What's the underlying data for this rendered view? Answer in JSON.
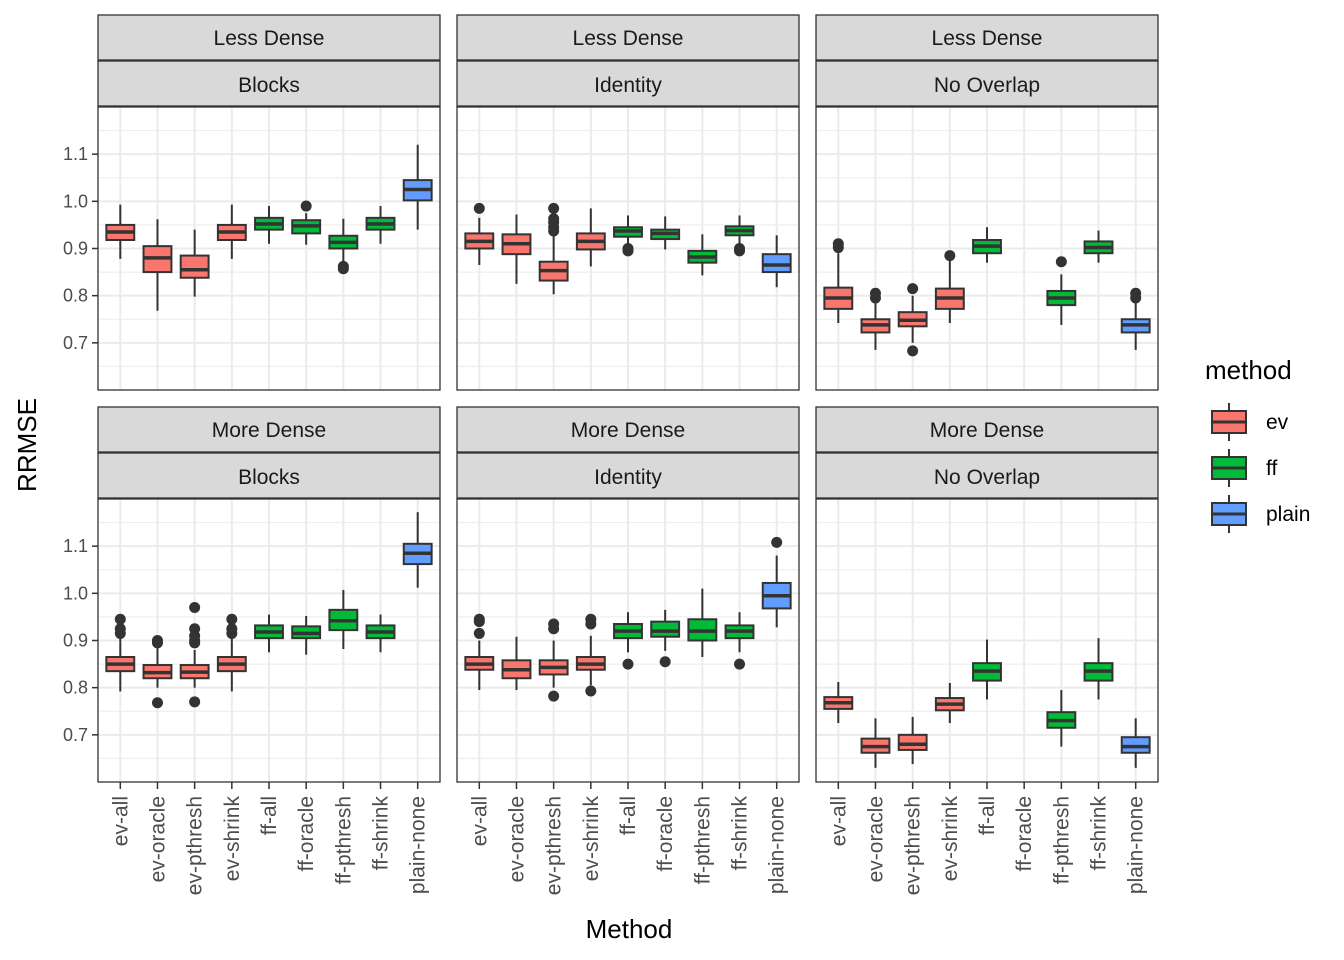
{
  "chart_data": {
    "type": "boxplot",
    "xlabel": "Method",
    "ylabel": "RRMSE",
    "ylim": [
      0.6,
      1.2
    ],
    "yticks": [
      0.7,
      0.8,
      0.9,
      1.0,
      1.1
    ],
    "ytick_labels": [
      "0.7",
      "0.8",
      "0.9",
      "1.0",
      "1.1"
    ],
    "categories": [
      "ev-all",
      "ev-oracle",
      "ev-pthresh",
      "ev-shrink",
      "ff-all",
      "ff-oracle",
      "ff-pthresh",
      "ff-shrink",
      "plain-none"
    ],
    "category_groups": [
      "ev",
      "ev",
      "ev",
      "ev",
      "ff",
      "ff",
      "ff",
      "ff",
      "plain"
    ],
    "grid": true,
    "legend": {
      "title": "method",
      "position": "right",
      "items": [
        {
          "label": "ev",
          "color": "#F8766D"
        },
        {
          "label": "ff",
          "color": "#00BA38"
        },
        {
          "label": "plain",
          "color": "#619CFF"
        }
      ]
    },
    "panels": [
      {
        "row_label": "Less Dense",
        "col_label": "Blocks",
        "boxes": [
          {
            "min": 0.878,
            "q1": 0.918,
            "median": 0.935,
            "q3": 0.95,
            "max": 0.993,
            "outliers": []
          },
          {
            "min": 0.768,
            "q1": 0.85,
            "median": 0.88,
            "q3": 0.905,
            "max": 0.962,
            "outliers": []
          },
          {
            "min": 0.798,
            "q1": 0.838,
            "median": 0.855,
            "q3": 0.885,
            "max": 0.94,
            "outliers": []
          },
          {
            "min": 0.878,
            "q1": 0.918,
            "median": 0.935,
            "q3": 0.95,
            "max": 0.993,
            "outliers": []
          },
          {
            "min": 0.91,
            "q1": 0.94,
            "median": 0.952,
            "q3": 0.965,
            "max": 0.99,
            "outliers": []
          },
          {
            "min": 0.908,
            "q1": 0.932,
            "median": 0.948,
            "q3": 0.96,
            "max": 0.975,
            "outliers": [
              0.99
            ]
          },
          {
            "min": 0.87,
            "q1": 0.9,
            "median": 0.913,
            "q3": 0.927,
            "max": 0.963,
            "outliers": [
              0.862,
              0.857
            ]
          },
          {
            "min": 0.91,
            "q1": 0.94,
            "median": 0.952,
            "q3": 0.965,
            "max": 0.99,
            "outliers": []
          },
          {
            "min": 0.94,
            "q1": 1.002,
            "median": 1.025,
            "q3": 1.045,
            "max": 1.12,
            "outliers": []
          }
        ]
      },
      {
        "row_label": "Less Dense",
        "col_label": "Identity",
        "boxes": [
          {
            "min": 0.865,
            "q1": 0.9,
            "median": 0.915,
            "q3": 0.932,
            "max": 0.965,
            "outliers": [
              0.985
            ]
          },
          {
            "min": 0.825,
            "q1": 0.888,
            "median": 0.91,
            "q3": 0.93,
            "max": 0.972,
            "outliers": []
          },
          {
            "min": 0.803,
            "q1": 0.832,
            "median": 0.853,
            "q3": 0.872,
            "max": 0.93,
            "outliers": [
              0.937,
              0.945,
              0.955,
              0.963,
              0.985
            ]
          },
          {
            "min": 0.862,
            "q1": 0.898,
            "median": 0.915,
            "q3": 0.932,
            "max": 0.985,
            "outliers": []
          },
          {
            "min": 0.905,
            "q1": 0.925,
            "median": 0.937,
            "q3": 0.945,
            "max": 0.97,
            "outliers": [
              0.895,
              0.9
            ]
          },
          {
            "min": 0.898,
            "q1": 0.92,
            "median": 0.932,
            "q3": 0.94,
            "max": 0.968,
            "outliers": []
          },
          {
            "min": 0.843,
            "q1": 0.87,
            "median": 0.882,
            "q3": 0.895,
            "max": 0.93,
            "outliers": []
          },
          {
            "min": 0.905,
            "q1": 0.928,
            "median": 0.938,
            "q3": 0.947,
            "max": 0.97,
            "outliers": [
              0.895,
              0.9
            ]
          },
          {
            "min": 0.818,
            "q1": 0.85,
            "median": 0.865,
            "q3": 0.888,
            "max": 0.928,
            "outliers": []
          }
        ]
      },
      {
        "row_label": "Less Dense",
        "col_label": "No Overlap",
        "boxes": [
          {
            "min": 0.742,
            "q1": 0.772,
            "median": 0.795,
            "q3": 0.817,
            "max": 0.89,
            "outliers": [
              0.902,
              0.91
            ]
          },
          {
            "min": 0.685,
            "q1": 0.722,
            "median": 0.738,
            "q3": 0.75,
            "max": 0.785,
            "outliers": [
              0.795,
              0.805
            ]
          },
          {
            "min": 0.7,
            "q1": 0.735,
            "median": 0.748,
            "q3": 0.765,
            "max": 0.8,
            "outliers": [
              0.815,
              0.683
            ]
          },
          {
            "min": 0.742,
            "q1": 0.772,
            "median": 0.795,
            "q3": 0.815,
            "max": 0.88,
            "outliers": [
              0.885
            ]
          },
          {
            "min": 0.87,
            "q1": 0.89,
            "median": 0.905,
            "q3": 0.918,
            "max": 0.945,
            "outliers": []
          },
          null,
          {
            "min": 0.738,
            "q1": 0.78,
            "median": 0.795,
            "q3": 0.81,
            "max": 0.845,
            "outliers": [
              0.872
            ]
          },
          {
            "min": 0.87,
            "q1": 0.89,
            "median": 0.902,
            "q3": 0.915,
            "max": 0.938,
            "outliers": []
          },
          {
            "min": 0.685,
            "q1": 0.722,
            "median": 0.738,
            "q3": 0.75,
            "max": 0.785,
            "outliers": [
              0.795,
              0.805
            ]
          }
        ]
      },
      {
        "row_label": "More Dense",
        "col_label": "Blocks",
        "boxes": [
          {
            "min": 0.792,
            "q1": 0.835,
            "median": 0.85,
            "q3": 0.865,
            "max": 0.905,
            "outliers": [
              0.915,
              0.925,
              0.945
            ]
          },
          {
            "min": 0.8,
            "q1": 0.82,
            "median": 0.832,
            "q3": 0.848,
            "max": 0.885,
            "outliers": [
              0.768,
              0.895,
              0.9
            ]
          },
          {
            "min": 0.8,
            "q1": 0.82,
            "median": 0.833,
            "q3": 0.848,
            "max": 0.88,
            "outliers": [
              0.77,
              0.895,
              0.9,
              0.91,
              0.925,
              0.97
            ]
          },
          {
            "min": 0.792,
            "q1": 0.835,
            "median": 0.85,
            "q3": 0.865,
            "max": 0.905,
            "outliers": [
              0.915,
              0.925,
              0.945
            ]
          },
          {
            "min": 0.875,
            "q1": 0.905,
            "median": 0.918,
            "q3": 0.932,
            "max": 0.955,
            "outliers": []
          },
          {
            "min": 0.87,
            "q1": 0.905,
            "median": 0.915,
            "q3": 0.93,
            "max": 0.952,
            "outliers": []
          },
          {
            "min": 0.882,
            "q1": 0.922,
            "median": 0.942,
            "q3": 0.965,
            "max": 1.007,
            "outliers": []
          },
          {
            "min": 0.875,
            "q1": 0.905,
            "median": 0.918,
            "q3": 0.932,
            "max": 0.955,
            "outliers": []
          },
          {
            "min": 1.012,
            "q1": 1.062,
            "median": 1.085,
            "q3": 1.105,
            "max": 1.172,
            "outliers": []
          }
        ]
      },
      {
        "row_label": "More Dense",
        "col_label": "Identity",
        "boxes": [
          {
            "min": 0.795,
            "q1": 0.838,
            "median": 0.85,
            "q3": 0.865,
            "max": 0.9,
            "outliers": [
              0.915,
              0.94,
              0.945
            ]
          },
          {
            "min": 0.795,
            "q1": 0.82,
            "median": 0.838,
            "q3": 0.858,
            "max": 0.908,
            "outliers": []
          },
          {
            "min": 0.8,
            "q1": 0.828,
            "median": 0.843,
            "q3": 0.858,
            "max": 0.9,
            "outliers": [
              0.782,
              0.925,
              0.935
            ]
          },
          {
            "min": 0.805,
            "q1": 0.838,
            "median": 0.85,
            "q3": 0.865,
            "max": 0.91,
            "outliers": [
              0.793,
              0.935,
              0.945
            ]
          },
          {
            "min": 0.875,
            "q1": 0.905,
            "median": 0.92,
            "q3": 0.935,
            "max": 0.96,
            "outliers": [
              0.85
            ]
          },
          {
            "min": 0.878,
            "q1": 0.908,
            "median": 0.92,
            "q3": 0.94,
            "max": 0.965,
            "outliers": [
              0.855
            ]
          },
          {
            "min": 0.865,
            "q1": 0.9,
            "median": 0.92,
            "q3": 0.945,
            "max": 1.01,
            "outliers": []
          },
          {
            "min": 0.875,
            "q1": 0.905,
            "median": 0.92,
            "q3": 0.932,
            "max": 0.96,
            "outliers": [
              0.85
            ]
          },
          {
            "min": 0.928,
            "q1": 0.968,
            "median": 0.995,
            "q3": 1.022,
            "max": 1.08,
            "outliers": [
              1.108
            ]
          }
        ]
      },
      {
        "row_label": "More Dense",
        "col_label": "No Overlap",
        "boxes": [
          {
            "min": 0.725,
            "q1": 0.755,
            "median": 0.768,
            "q3": 0.78,
            "max": 0.812,
            "outliers": []
          },
          {
            "min": 0.63,
            "q1": 0.662,
            "median": 0.675,
            "q3": 0.692,
            "max": 0.735,
            "outliers": []
          },
          {
            "min": 0.638,
            "q1": 0.668,
            "median": 0.68,
            "q3": 0.7,
            "max": 0.738,
            "outliers": []
          },
          {
            "min": 0.725,
            "q1": 0.752,
            "median": 0.765,
            "q3": 0.778,
            "max": 0.81,
            "outliers": []
          },
          {
            "min": 0.775,
            "q1": 0.815,
            "median": 0.835,
            "q3": 0.852,
            "max": 0.902,
            "outliers": []
          },
          null,
          {
            "min": 0.675,
            "q1": 0.715,
            "median": 0.73,
            "q3": 0.748,
            "max": 0.795,
            "outliers": []
          },
          {
            "min": 0.775,
            "q1": 0.815,
            "median": 0.835,
            "q3": 0.852,
            "max": 0.905,
            "outliers": []
          },
          {
            "min": 0.63,
            "q1": 0.662,
            "median": 0.675,
            "q3": 0.695,
            "max": 0.735,
            "outliers": []
          }
        ]
      }
    ]
  }
}
